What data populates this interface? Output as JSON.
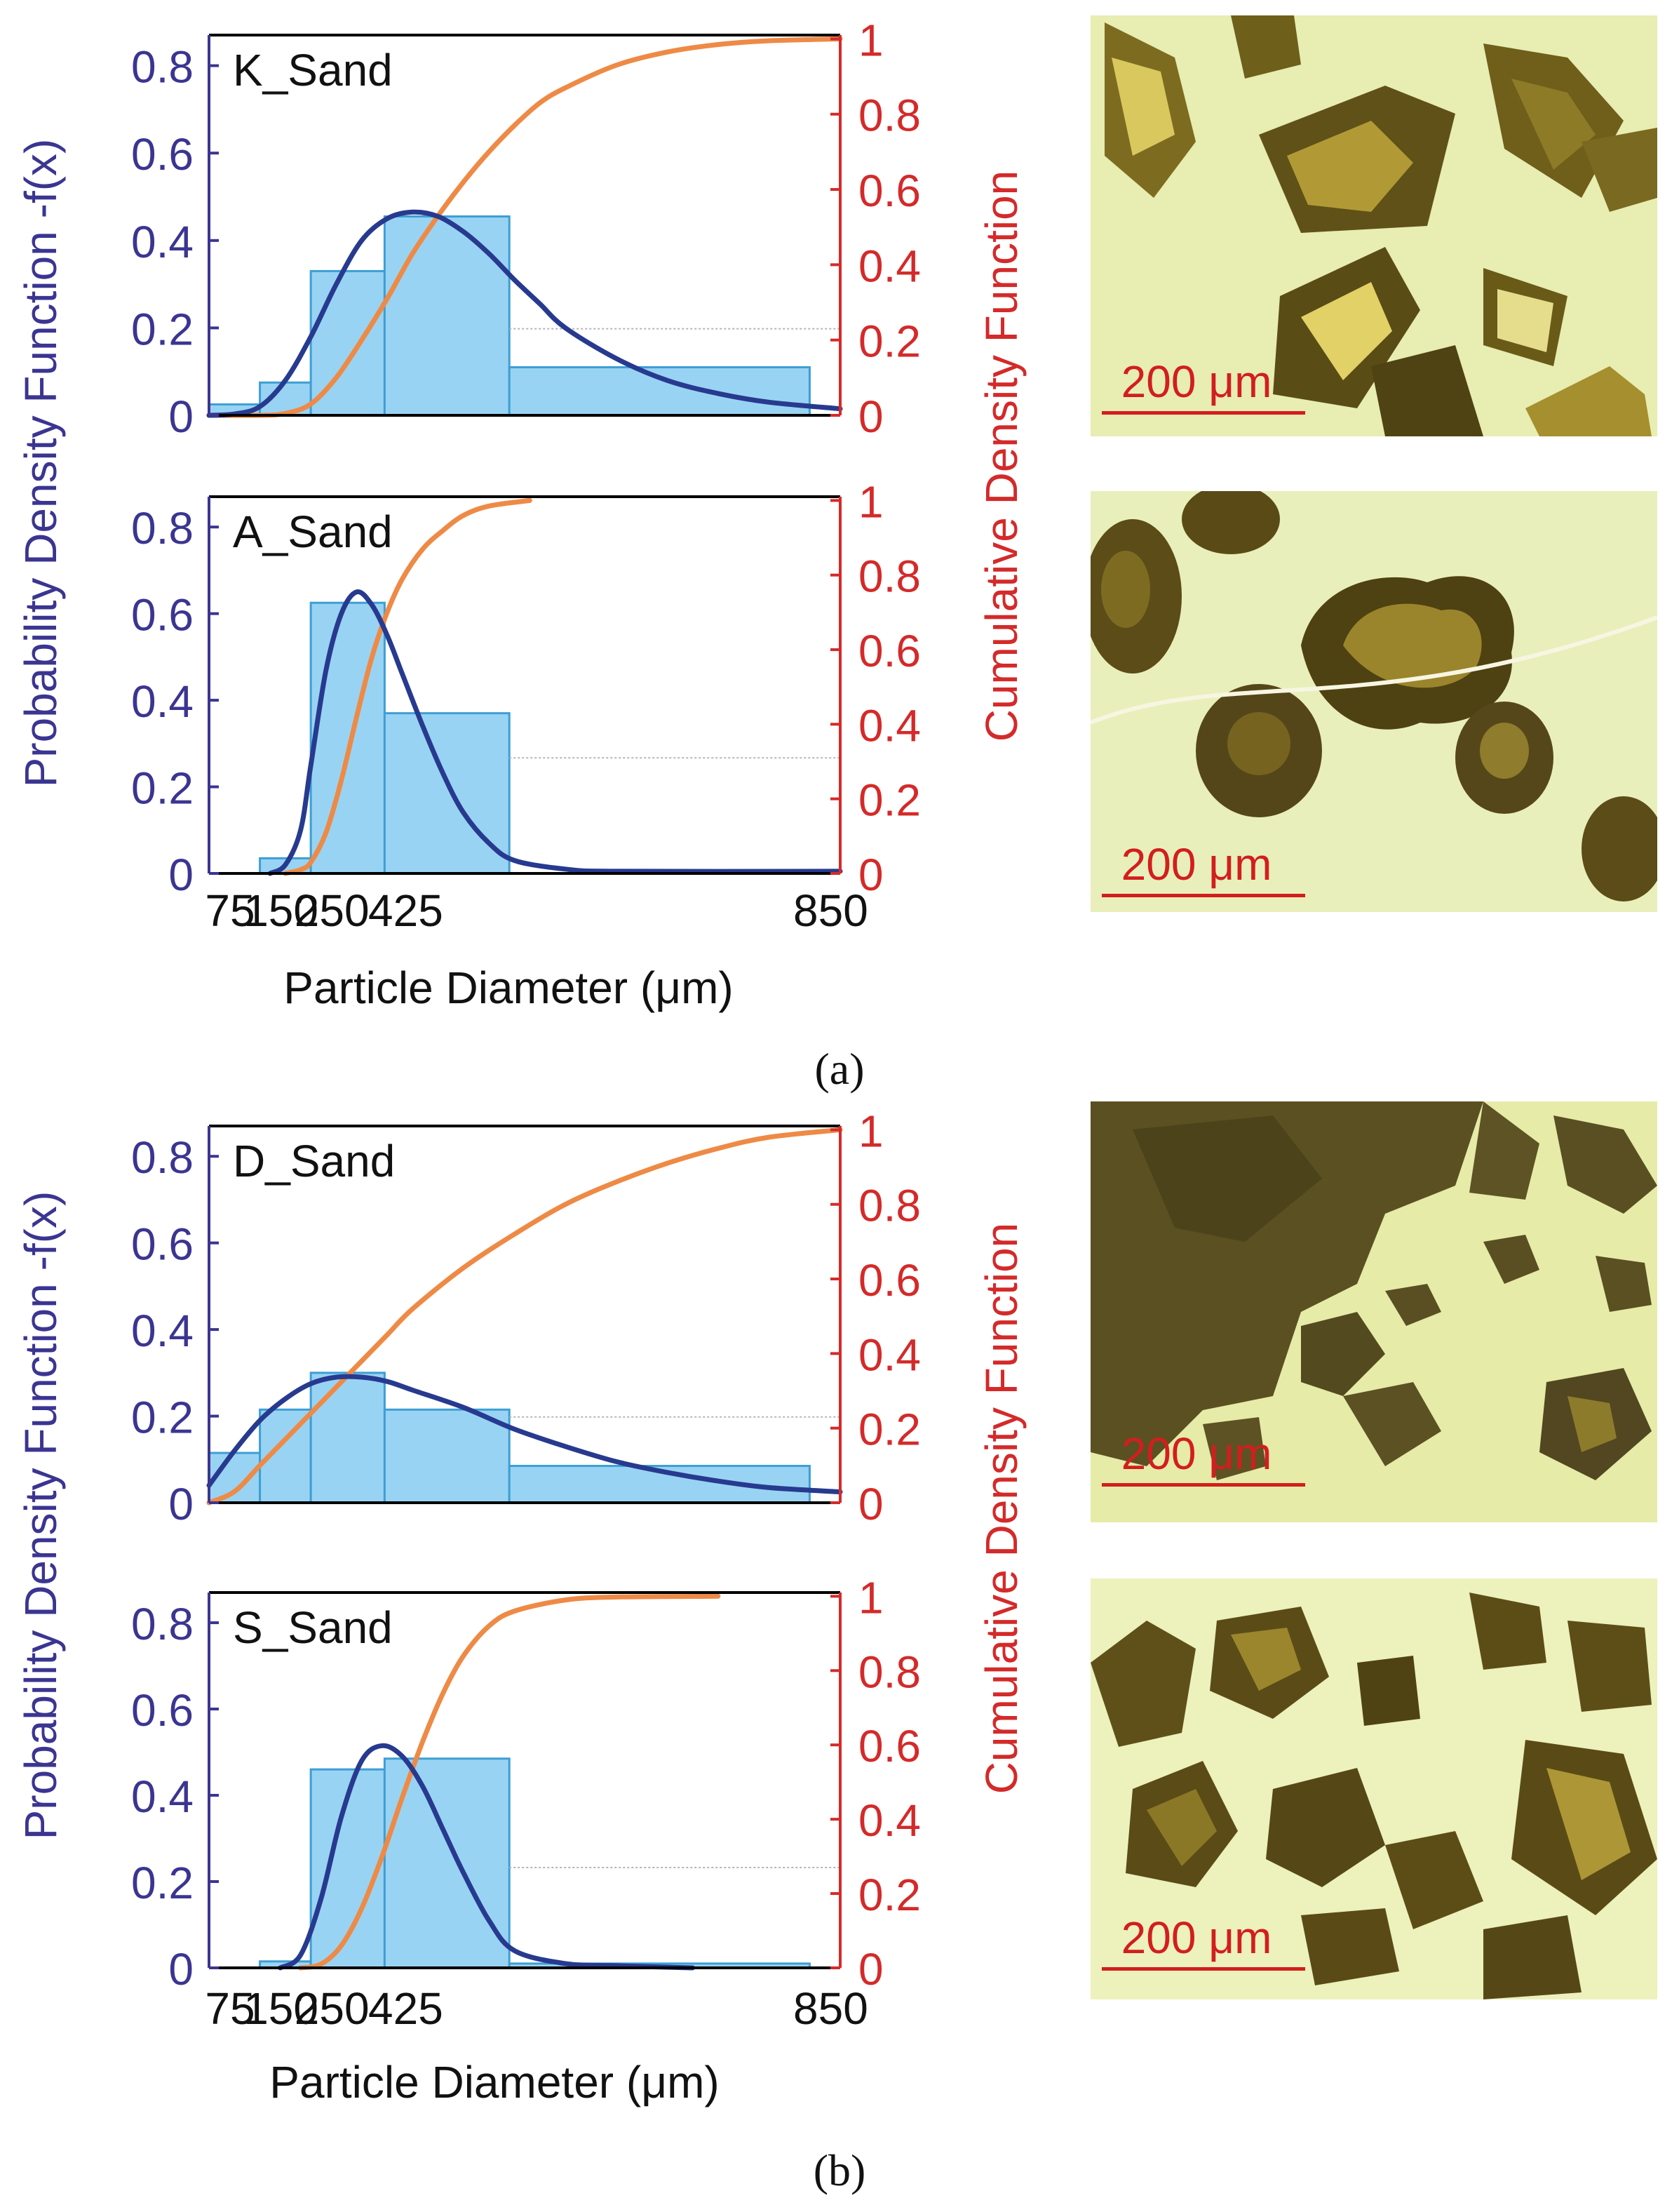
{
  "colors": {
    "pdf_axis": "#3b3591",
    "cdf_axis": "#d42a2a",
    "pdf_curve": "#273a8f",
    "cdf_curve": "#ee8a45",
    "bar_fill": "#99d3f3",
    "bar_edge": "#3d9fd4",
    "frame": "#000000"
  },
  "figure": {
    "part_labels": [
      "(a)",
      "(b)"
    ],
    "ylabel_left": "Probability Density Function -f(x)",
    "ylabel_right": "Cumulative Density Function",
    "xlabel": "Particle Diameter (μm)",
    "scale_bar_label": "200 μm"
  },
  "chart_data": [
    {
      "type": "bar",
      "title": "K_Sand",
      "xlabel": "Particle Diameter (μm)",
      "ylabel": "Probability Density Function -f(x)",
      "ylabel_right": "Cumulative Density Function",
      "x_ticks": [
        "75",
        "150",
        "250",
        "425",
        "850"
      ],
      "ylim": [
        0,
        0.87
      ],
      "y_ticks": [
        "0",
        "0.2",
        "0.4",
        "0.6",
        "0.8"
      ],
      "y2lim": [
        0,
        1
      ],
      "y2_ticks": [
        "0",
        "0.2",
        "0.4",
        "0.6",
        "0.8",
        "1"
      ],
      "bins": [
        {
          "from": 0,
          "to": 1,
          "value": 0.025
        },
        {
          "from": 1,
          "to": 2,
          "value": 0.075
        },
        {
          "from": 2,
          "to": 3.45,
          "value": 0.33
        },
        {
          "from": 3.45,
          "to": 5.9,
          "value": 0.455
        },
        {
          "from": 5.9,
          "to": 11.8,
          "value": 0.11
        }
      ],
      "pdf": {
        "x": [
          0,
          0.5,
          1,
          1.5,
          2,
          2.5,
          3,
          3.5,
          4,
          4.5,
          5,
          5.5,
          6,
          6.5,
          7,
          8,
          9,
          10,
          11,
          12.4
        ],
        "y": [
          0,
          0.003,
          0.02,
          0.08,
          0.18,
          0.3,
          0.4,
          0.45,
          0.465,
          0.455,
          0.42,
          0.37,
          0.31,
          0.255,
          0.2,
          0.13,
          0.08,
          0.05,
          0.03,
          0.015
        ]
      },
      "cdf": {
        "x": [
          0,
          1,
          1.5,
          2,
          2.5,
          3,
          3.5,
          4,
          4.5,
          5,
          5.5,
          6,
          6.5,
          7,
          8,
          9,
          10,
          11,
          12.4
        ],
        "y": [
          0,
          0,
          0.005,
          0.03,
          0.1,
          0.2,
          0.31,
          0.43,
          0.53,
          0.62,
          0.7,
          0.77,
          0.83,
          0.87,
          0.93,
          0.965,
          0.985,
          0.995,
          1.0
        ]
      },
      "reference_line": {
        "y2": 0.23
      }
    },
    {
      "type": "bar",
      "title": "A_Sand",
      "xlabel": "Particle Diameter (μm)",
      "ylabel": "Probability Density Function -f(x)",
      "ylabel_right": "Cumulative Density Function",
      "x_ticks": [
        "75",
        "150",
        "250",
        "425",
        "850"
      ],
      "ylim": [
        0,
        0.87
      ],
      "y_ticks": [
        "0",
        "0.2",
        "0.4",
        "0.6",
        "0.8"
      ],
      "y2lim": [
        0,
        1
      ],
      "y2_ticks": [
        "0",
        "0.2",
        "0.4",
        "0.6",
        "0.8",
        "1"
      ],
      "bins": [
        {
          "from": 1,
          "to": 2,
          "value": 0.035
        },
        {
          "from": 2,
          "to": 3.45,
          "value": 0.625
        },
        {
          "from": 3.45,
          "to": 5.9,
          "value": 0.37
        }
      ],
      "pdf": {
        "x": [
          1.2,
          1.5,
          1.8,
          2.0,
          2.3,
          2.6,
          2.9,
          3.2,
          3.5,
          3.8,
          4.2,
          4.6,
          5.0,
          5.5,
          6.0,
          7.0,
          8.0,
          12.4
        ],
        "y": [
          0,
          0.02,
          0.1,
          0.25,
          0.47,
          0.6,
          0.65,
          0.62,
          0.55,
          0.46,
          0.34,
          0.23,
          0.14,
          0.07,
          0.03,
          0.01,
          0.005,
          0.005
        ]
      },
      "cdf": {
        "x": [
          1.5,
          1.8,
          2.0,
          2.3,
          2.6,
          2.9,
          3.2,
          3.5,
          3.8,
          4.2,
          4.6,
          5.0,
          5.5,
          6.3
        ],
        "y": [
          0,
          0.01,
          0.03,
          0.11,
          0.25,
          0.42,
          0.58,
          0.7,
          0.79,
          0.87,
          0.92,
          0.96,
          0.985,
          1.0
        ]
      },
      "reference_line": {
        "y2": 0.31
      }
    },
    {
      "type": "bar",
      "title": "D_Sand",
      "xlabel": "Particle Diameter (μm)",
      "ylabel": "Probability Density Function -f(x)",
      "ylabel_right": "Cumulative Density Function",
      "x_ticks": [
        "75",
        "150",
        "250",
        "425",
        "850"
      ],
      "ylim": [
        0,
        0.87
      ],
      "y_ticks": [
        "0",
        "0.2",
        "0.4",
        "0.6",
        "0.8"
      ],
      "y2lim": [
        0,
        1
      ],
      "y2_ticks": [
        "0",
        "0.2",
        "0.4",
        "0.6",
        "0.8",
        "1"
      ],
      "bins": [
        {
          "from": 0,
          "to": 1,
          "value": 0.115
        },
        {
          "from": 1,
          "to": 2,
          "value": 0.215
        },
        {
          "from": 2,
          "to": 3.45,
          "value": 0.3
        },
        {
          "from": 3.45,
          "to": 5.9,
          "value": 0.215
        },
        {
          "from": 5.9,
          "to": 11.8,
          "value": 0.085
        }
      ],
      "pdf": {
        "x": [
          0,
          0.5,
          1,
          1.5,
          2,
          2.5,
          3,
          3.5,
          4,
          5,
          6,
          7,
          8,
          9,
          10,
          11,
          12.4
        ],
        "y": [
          0.04,
          0.12,
          0.19,
          0.24,
          0.275,
          0.29,
          0.29,
          0.28,
          0.26,
          0.22,
          0.17,
          0.13,
          0.095,
          0.07,
          0.05,
          0.035,
          0.025
        ]
      },
      "cdf": {
        "x": [
          0,
          0.5,
          1,
          1.5,
          2,
          2.5,
          3,
          3.5,
          4,
          5,
          6,
          7,
          8,
          9,
          10,
          11,
          12.4
        ],
        "y": [
          0,
          0.03,
          0.1,
          0.17,
          0.24,
          0.31,
          0.38,
          0.45,
          0.52,
          0.63,
          0.72,
          0.8,
          0.86,
          0.91,
          0.95,
          0.98,
          1.0
        ]
      },
      "reference_line": {
        "y2": 0.23
      }
    },
    {
      "type": "bar",
      "title": "S_Sand",
      "xlabel": "Particle Diameter (μm)",
      "ylabel": "Probability Density Function -f(x)",
      "ylabel_right": "Cumulative Density Function",
      "x_ticks": [
        "75",
        "150",
        "250",
        "425",
        "850"
      ],
      "ylim": [
        0,
        0.87
      ],
      "y_ticks": [
        "0",
        "0.2",
        "0.4",
        "0.6",
        "0.8"
      ],
      "y2lim": [
        0,
        1
      ],
      "y2_ticks": [
        "0",
        "0.2",
        "0.4",
        "0.6",
        "0.8",
        "1"
      ],
      "bins": [
        {
          "from": 1,
          "to": 2,
          "value": 0.015
        },
        {
          "from": 2,
          "to": 3.45,
          "value": 0.46
        },
        {
          "from": 3.45,
          "to": 5.9,
          "value": 0.485
        },
        {
          "from": 5.9,
          "to": 11.8,
          "value": 0.01
        }
      ],
      "pdf": {
        "x": [
          1.4,
          1.8,
          2.2,
          2.6,
          3.0,
          3.4,
          3.8,
          4.2,
          4.6,
          5.0,
          5.5,
          6.0,
          7.0,
          8.0,
          9.5
        ],
        "y": [
          0,
          0.03,
          0.16,
          0.35,
          0.48,
          0.515,
          0.49,
          0.42,
          0.32,
          0.22,
          0.11,
          0.04,
          0.01,
          0.005,
          0.0
        ]
      },
      "cdf": {
        "x": [
          1.8,
          2.2,
          2.6,
          3.0,
          3.4,
          3.8,
          4.2,
          4.6,
          5.0,
          5.5,
          6.0,
          7.0,
          8.0,
          10.0
        ],
        "y": [
          0,
          0.01,
          0.06,
          0.16,
          0.3,
          0.46,
          0.61,
          0.74,
          0.84,
          0.92,
          0.96,
          0.99,
          0.998,
          1.0
        ]
      },
      "reference_line": {
        "y2": 0.27
      }
    }
  ]
}
